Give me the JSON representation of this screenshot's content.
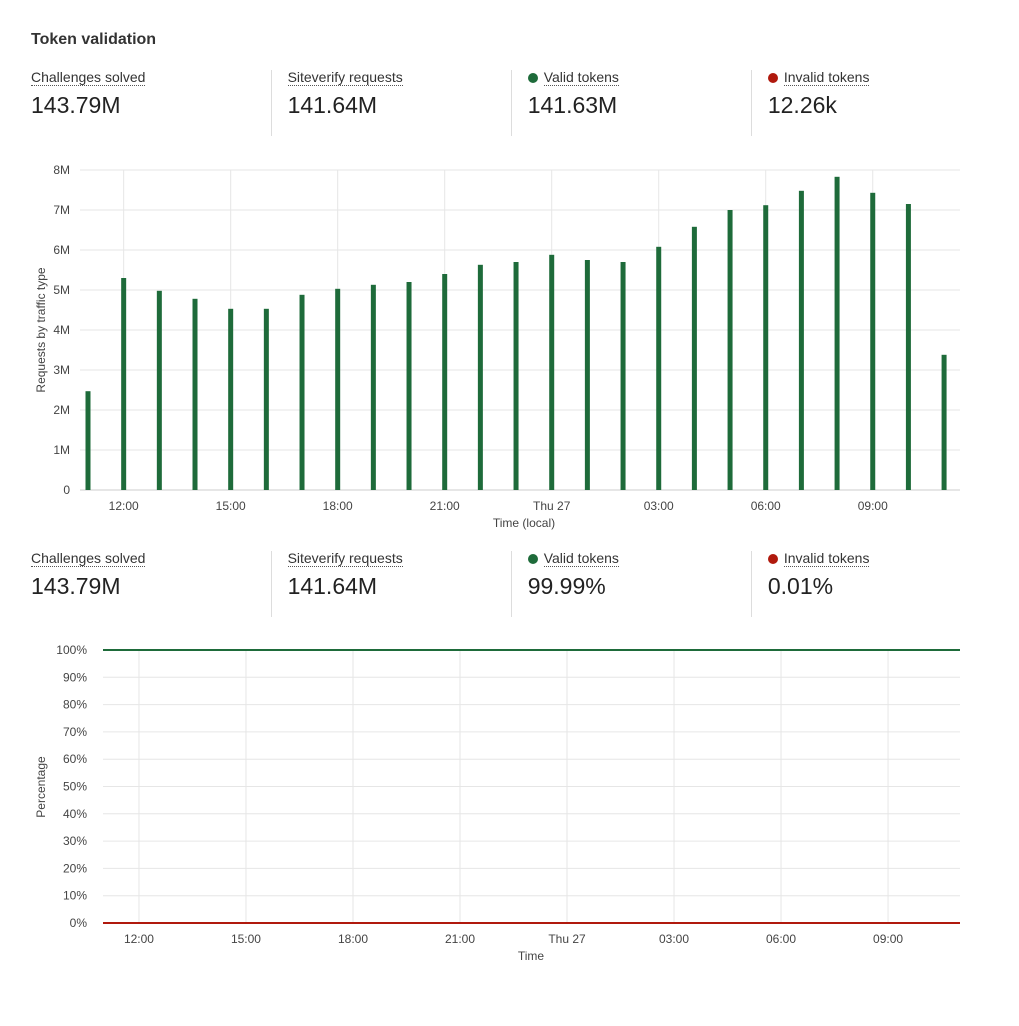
{
  "title": "Token validation",
  "colors": {
    "valid": "#1e6b3a",
    "invalid": "#b0190d",
    "grid": "#e6e6e6"
  },
  "stats_top": [
    {
      "label": "Challenges solved",
      "value": "143.79M"
    },
    {
      "label": "Siteverify requests",
      "value": "141.64M"
    },
    {
      "label": "Valid tokens",
      "value": "141.63M",
      "dot": "valid"
    },
    {
      "label": "Invalid tokens",
      "value": "12.26k",
      "dot": "invalid"
    }
  ],
  "stats_bottom": [
    {
      "label": "Challenges solved",
      "value": "143.79M"
    },
    {
      "label": "Siteverify requests",
      "value": "141.64M"
    },
    {
      "label": "Valid tokens",
      "value": "99.99%",
      "dot": "valid"
    },
    {
      "label": "Invalid tokens",
      "value": "0.01%",
      "dot": "invalid"
    }
  ],
  "chart_data": [
    {
      "type": "bar",
      "xlabel": "Time (local)",
      "ylabel": "Requests by traffic type",
      "ylim": [
        0,
        8
      ],
      "y_ticks": [
        "0",
        "1M",
        "2M",
        "3M",
        "4M",
        "5M",
        "6M",
        "7M",
        "8M"
      ],
      "x_ticks": [
        "12:00",
        "15:00",
        "18:00",
        "21:00",
        "Thu 27",
        "03:00",
        "06:00",
        "09:00"
      ],
      "categories": [
        "11:00",
        "12:00",
        "13:00",
        "14:00",
        "15:00",
        "16:00",
        "17:00",
        "18:00",
        "19:00",
        "20:00",
        "21:00",
        "22:00",
        "23:00",
        "00:00",
        "01:00",
        "02:00",
        "03:00",
        "04:00",
        "05:00",
        "06:00",
        "07:00",
        "08:00",
        "09:00",
        "10:00",
        "11:00"
      ],
      "values_millions": [
        2.47,
        5.3,
        4.98,
        4.78,
        4.53,
        4.53,
        4.88,
        5.03,
        5.13,
        5.2,
        5.4,
        5.63,
        5.7,
        5.88,
        5.75,
        5.7,
        6.08,
        6.58,
        7.0,
        7.12,
        7.48,
        7.83,
        7.43,
        7.15,
        3.38
      ],
      "grid": true
    },
    {
      "type": "line",
      "xlabel": "Time",
      "ylabel": "Percentage",
      "ylim": [
        0,
        100
      ],
      "y_ticks": [
        "0%",
        "10%",
        "20%",
        "30%",
        "40%",
        "50%",
        "60%",
        "70%",
        "80%",
        "90%",
        "100%"
      ],
      "x_ticks": [
        "12:00",
        "15:00",
        "18:00",
        "21:00",
        "Thu 27",
        "03:00",
        "06:00",
        "09:00"
      ],
      "series": [
        {
          "name": "Valid tokens",
          "color": "valid",
          "values": [
            99.99
          ]
        },
        {
          "name": "Invalid tokens",
          "color": "invalid",
          "values": [
            0.01
          ]
        }
      ],
      "grid": true
    }
  ]
}
